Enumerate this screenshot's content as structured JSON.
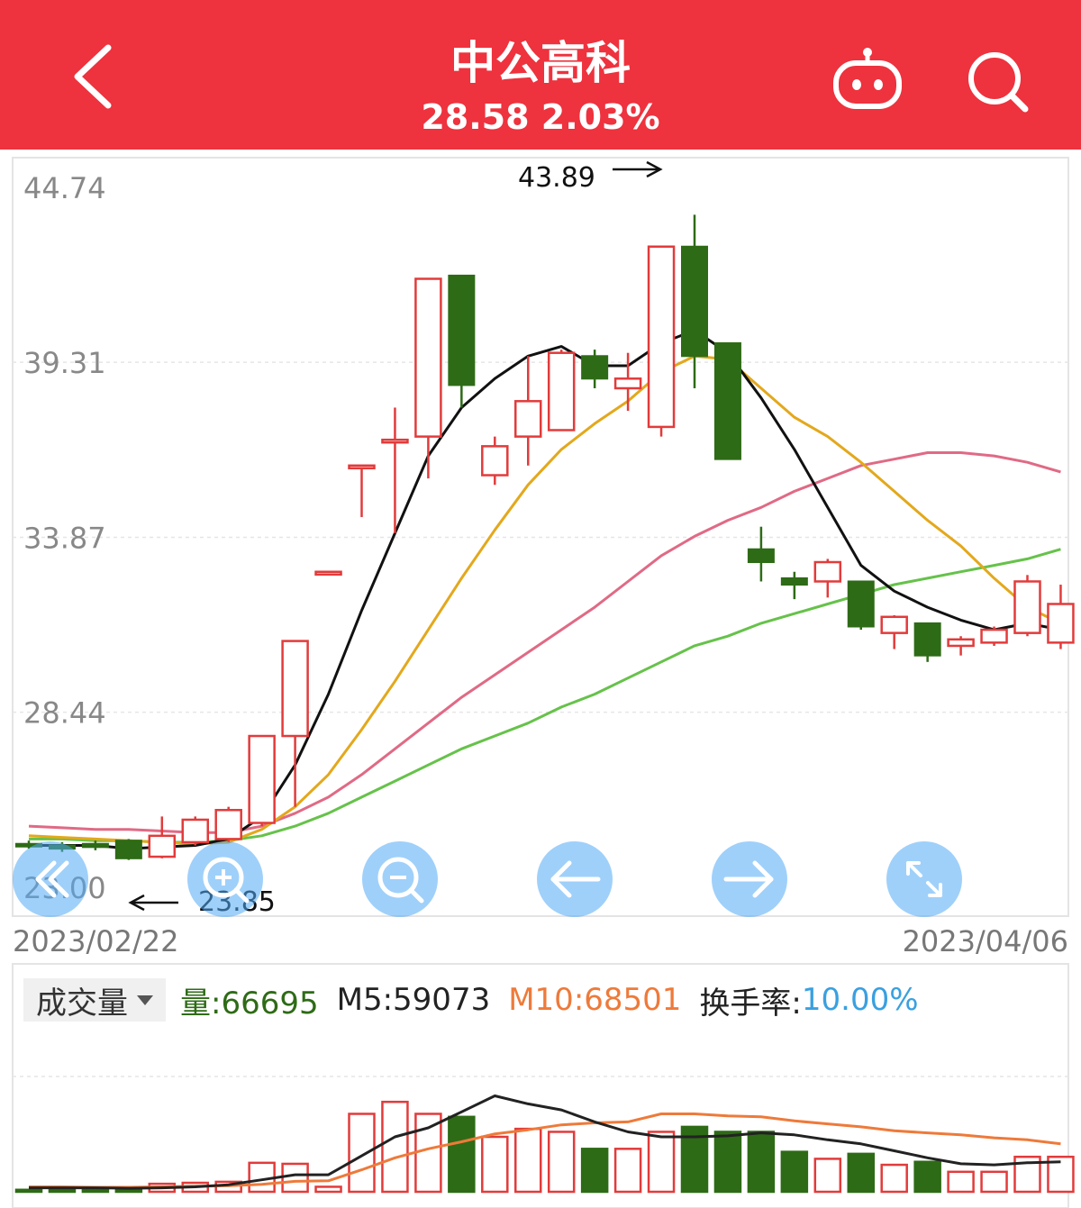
{
  "header": {
    "title": "中公高科",
    "quote": "28.58 2.03%",
    "bg_color": "#ee323e"
  },
  "icons": {
    "back": "back-chevron-icon",
    "robot": "robot-icon",
    "search": "search-icon"
  },
  "toolbar": {
    "buttons": [
      "skip-back-icon",
      "zoom-in-icon",
      "zoom-out-icon",
      "arrow-left-icon",
      "arrow-right-icon",
      "expand-icon"
    ]
  },
  "chart_data": {
    "type": "candlestick",
    "y_ticks": [
      "44.74",
      "39.31",
      "33.87",
      "28.44",
      "23.00"
    ],
    "ylim": [
      23.0,
      44.74
    ],
    "x_labels": {
      "start": "2023/02/22",
      "end": "2023/04/06"
    },
    "max_marker": {
      "value": "43.89"
    },
    "min_marker": {
      "value": "23.85"
    },
    "colors": {
      "up": "#e23b3b",
      "down": "#2e6b16",
      "ma5": "#111111",
      "ma10": "#e3a81c",
      "ma20": "#e06a85",
      "ma30": "#66c24a"
    },
    "candles": [
      {
        "o": 24.35,
        "c": 24.3,
        "h": 24.45,
        "l": 24.2
      },
      {
        "o": 24.3,
        "c": 24.2,
        "h": 24.4,
        "l": 24.1
      },
      {
        "o": 24.35,
        "c": 24.25,
        "h": 24.45,
        "l": 24.15
      },
      {
        "o": 24.45,
        "c": 23.9,
        "h": 24.5,
        "l": 23.85
      },
      {
        "o": 23.95,
        "c": 24.6,
        "h": 25.2,
        "l": 23.9
      },
      {
        "o": 24.4,
        "c": 25.1,
        "h": 25.2,
        "l": 24.3
      },
      {
        "o": 24.5,
        "c": 25.4,
        "h": 25.5,
        "l": 24.4
      },
      {
        "o": 25.0,
        "c": 27.7,
        "h": 27.7,
        "l": 24.9
      },
      {
        "o": 27.7,
        "c": 30.65,
        "h": 30.65,
        "l": 25.5
      },
      {
        "o": 32.8,
        "c": 32.8,
        "h": 32.8,
        "l": 32.8
      },
      {
        "o": 36.1,
        "c": 36.1,
        "h": 36.1,
        "l": 34.5
      },
      {
        "o": 36.9,
        "c": 36.9,
        "h": 37.9,
        "l": 34.0
      },
      {
        "o": 37.0,
        "c": 41.9,
        "h": 41.9,
        "l": 35.7
      },
      {
        "o": 42.0,
        "c": 38.6,
        "h": 42.0,
        "l": 37.9
      },
      {
        "o": 35.8,
        "c": 36.7,
        "h": 37.0,
        "l": 35.5
      },
      {
        "o": 37.0,
        "c": 38.1,
        "h": 39.5,
        "l": 36.1
      },
      {
        "o": 37.2,
        "c": 39.6,
        "h": 39.7,
        "l": 37.2
      },
      {
        "o": 39.5,
        "c": 38.8,
        "h": 39.7,
        "l": 38.5
      },
      {
        "o": 38.5,
        "c": 38.8,
        "h": 39.6,
        "l": 37.8
      },
      {
        "o": 37.3,
        "c": 42.9,
        "h": 42.9,
        "l": 37.0
      },
      {
        "o": 42.9,
        "c": 39.5,
        "h": 43.89,
        "l": 38.5
      },
      {
        "o": 39.9,
        "c": 36.3,
        "h": 39.9,
        "l": 36.3
      },
      {
        "o": 33.5,
        "c": 33.1,
        "h": 34.2,
        "l": 32.5
      },
      {
        "o": 32.6,
        "c": 32.4,
        "h": 32.8,
        "l": 31.95
      },
      {
        "o": 32.5,
        "c": 33.1,
        "h": 33.2,
        "l": 32.0
      },
      {
        "o": 32.5,
        "c": 31.1,
        "h": 32.5,
        "l": 31.0
      },
      {
        "o": 30.9,
        "c": 31.4,
        "h": 31.45,
        "l": 30.4
      },
      {
        "o": 31.2,
        "c": 30.2,
        "h": 31.2,
        "l": 30.0
      },
      {
        "o": 30.5,
        "c": 30.7,
        "h": 30.8,
        "l": 30.2
      },
      {
        "o": 30.6,
        "c": 31.0,
        "h": 31.1,
        "l": 30.5
      },
      {
        "o": 30.9,
        "c": 32.5,
        "h": 32.7,
        "l": 30.8
      },
      {
        "o": 30.6,
        "c": 31.8,
        "h": 32.4,
        "l": 30.4
      }
    ],
    "ma5": [
      24.3,
      24.3,
      24.3,
      24.2,
      24.25,
      24.3,
      24.5,
      25.2,
      26.8,
      29.0,
      31.6,
      34.0,
      36.4,
      37.9,
      38.8,
      39.5,
      39.8,
      39.2,
      39.2,
      39.9,
      40.3,
      39.6,
      38.2,
      36.6,
      34.8,
      33.0,
      32.2,
      31.7,
      31.3,
      31.0,
      31.2,
      31.0
    ],
    "ma10": [
      24.6,
      24.55,
      24.5,
      24.45,
      24.4,
      24.35,
      24.4,
      24.8,
      25.5,
      26.5,
      27.9,
      29.4,
      31.0,
      32.6,
      34.1,
      35.5,
      36.6,
      37.4,
      38.1,
      39.0,
      39.5,
      39.4,
      38.5,
      37.6,
      37.0,
      36.2,
      35.3,
      34.4,
      33.6,
      32.6,
      31.7,
      31.2
    ],
    "ma20": [
      24.9,
      24.85,
      24.8,
      24.8,
      24.75,
      24.7,
      24.7,
      24.9,
      25.3,
      25.8,
      26.5,
      27.3,
      28.1,
      28.9,
      29.6,
      30.3,
      31.0,
      31.7,
      32.5,
      33.3,
      33.9,
      34.4,
      34.8,
      35.3,
      35.7,
      36.1,
      36.3,
      36.5,
      36.5,
      36.4,
      36.2,
      35.9
    ],
    "ma30": [
      24.5,
      24.5,
      24.45,
      24.45,
      24.4,
      24.4,
      24.45,
      24.6,
      24.9,
      25.3,
      25.8,
      26.3,
      26.8,
      27.3,
      27.7,
      28.1,
      28.6,
      29.0,
      29.5,
      30.0,
      30.5,
      30.8,
      31.2,
      31.5,
      31.8,
      32.1,
      32.4,
      32.6,
      32.8,
      33.0,
      33.2,
      33.5
    ]
  },
  "volume": {
    "selector_label": "成交量",
    "qty_label": "量:66695",
    "m5_label": "M5:59073",
    "m10_label": "M10:68501",
    "turnover_prefix": "换手率:",
    "turnover_value": "10.00%",
    "colors": {
      "qty": "#2e6b16",
      "m5": "#222222",
      "m10": "#ee7a3a",
      "turnover_value": "#3aa0e0"
    },
    "max": 165000,
    "bars": [
      2000,
      3000,
      4000,
      3000,
      8000,
      9000,
      10000,
      29000,
      28000,
      5000,
      78000,
      90000,
      78000,
      75000,
      55000,
      63000,
      60000,
      43000,
      43000,
      60000,
      65000,
      60000,
      60000,
      40000,
      33000,
      38000,
      27000,
      30000,
      20000,
      20000,
      35000,
      35000
    ],
    "m5": [
      4000,
      4000,
      4000,
      3500,
      4000,
      5000,
      7000,
      12000,
      17000,
      17000,
      36000,
      55000,
      64000,
      80000,
      96000,
      88000,
      82000,
      70000,
      60000,
      55000,
      55000,
      56000,
      59000,
      57000,
      52000,
      48000,
      41000,
      34000,
      28000,
      27000,
      29000,
      30000
    ],
    "m10": [
      5000,
      5000,
      4500,
      4500,
      5000,
      5500,
      6000,
      7500,
      10500,
      11000,
      22000,
      34000,
      43000,
      50000,
      58000,
      62000,
      67000,
      69000,
      70000,
      78000,
      78000,
      76000,
      75000,
      71000,
      68000,
      65000,
      61000,
      59000,
      57000,
      54000,
      52000,
      48000
    ]
  }
}
